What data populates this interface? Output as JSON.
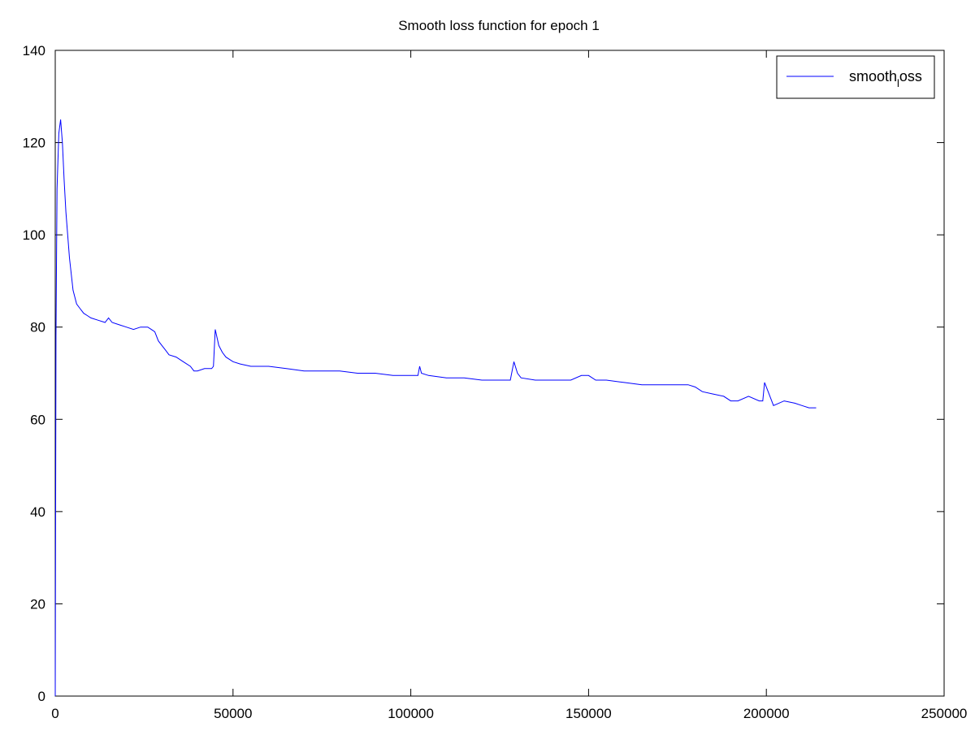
{
  "chart_data": {
    "type": "line",
    "title": "Smooth loss function for epoch 1",
    "xlabel": "",
    "ylabel": "",
    "xlim": [
      0,
      250000
    ],
    "ylim": [
      0,
      140
    ],
    "x_ticks": [
      0,
      50000,
      100000,
      150000,
      200000,
      250000
    ],
    "y_ticks": [
      0,
      20,
      40,
      60,
      80,
      100,
      120,
      140
    ],
    "x_tick_labels": [
      "0",
      "50000",
      "100000",
      "150000",
      "200000",
      "250000"
    ],
    "y_tick_labels": [
      "0",
      "20",
      "40",
      "60",
      "80",
      "100",
      "120",
      "140"
    ],
    "grid": false,
    "legend": {
      "position": "top-right",
      "label_main": "smooth",
      "label_sub": "l",
      "label_tail": "oss"
    },
    "series": [
      {
        "name": "smooth_loss",
        "color": "#0000ff",
        "x": [
          0,
          200,
          500,
          1000,
          1500,
          2000,
          2500,
          3000,
          4000,
          5000,
          6000,
          7000,
          8000,
          9000,
          10000,
          12000,
          14000,
          15000,
          16000,
          18000,
          20000,
          22000,
          24000,
          26000,
          27000,
          28000,
          29000,
          30000,
          31000,
          32000,
          34000,
          36000,
          38000,
          39000,
          40000,
          42000,
          44000,
          44500,
          45000,
          46000,
          47000,
          48000,
          50000,
          52000,
          55000,
          60000,
          65000,
          70000,
          75000,
          80000,
          85000,
          90000,
          95000,
          100000,
          102000,
          102500,
          103000,
          105000,
          110000,
          115000,
          120000,
          125000,
          128000,
          129000,
          130000,
          131000,
          135000,
          140000,
          145000,
          148000,
          150000,
          152000,
          155000,
          160000,
          165000,
          170000,
          175000,
          178000,
          180000,
          182000,
          185000,
          188000,
          190000,
          192000,
          195000,
          198000,
          199000,
          199500,
          200500,
          202000,
          205000,
          208000,
          210000,
          212000,
          214000
        ],
        "y": [
          0,
          78,
          110,
          122,
          125,
          120,
          112,
          105,
          95,
          88,
          85,
          84,
          83,
          82.5,
          82,
          81.5,
          81,
          82,
          81,
          80.5,
          80,
          79.5,
          80,
          80,
          79.5,
          79,
          77,
          76,
          75,
          74,
          73.5,
          72.5,
          71.5,
          70.5,
          70.5,
          71,
          71,
          71.5,
          79.5,
          76,
          74.5,
          73.5,
          72.5,
          72,
          71.5,
          71.5,
          71,
          70.5,
          70.5,
          70.5,
          70,
          70,
          69.5,
          69.5,
          69.5,
          71.5,
          70,
          69.5,
          69,
          69,
          68.5,
          68.5,
          68.5,
          72.5,
          70,
          69,
          68.5,
          68.5,
          68.5,
          69.5,
          69.5,
          68.5,
          68.5,
          68,
          67.5,
          67.5,
          67.5,
          67.5,
          67,
          66,
          65.5,
          65,
          64,
          64,
          65,
          64,
          64,
          68,
          66,
          63,
          64,
          63.5,
          63,
          62.5,
          62.5
        ]
      }
    ]
  }
}
